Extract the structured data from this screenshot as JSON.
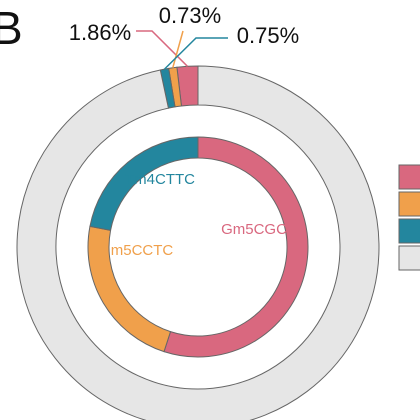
{
  "panel_letter": "B",
  "colors": {
    "gm5cgc": "#D9687F",
    "m5cctc": "#F0A04B",
    "tm4cttc": "#23869E",
    "other": "#E6E6E6",
    "stroke": "#666666"
  },
  "chart_data": [
    {
      "type": "pie",
      "ring": "outer",
      "labels": [
        "",
        "",
        "",
        ""
      ],
      "values": [
        1.86,
        0.73,
        0.75,
        96.66
      ],
      "data_labels": [
        "1.86%",
        "0.73%",
        "0.75%",
        ""
      ],
      "colors": [
        "#D9687F",
        "#F0A04B",
        "#23869E",
        "#E6E6E6"
      ]
    },
    {
      "type": "pie",
      "ring": "inner",
      "labels": [
        "Gm5CGC",
        "m5CCTC",
        "Tm4CTTC"
      ],
      "values": [
        55,
        23,
        22
      ],
      "colors": [
        "#D9687F",
        "#F0A04B",
        "#23869E"
      ]
    }
  ],
  "legend": {
    "placement": "right",
    "swatch_colors": [
      "#D9687F",
      "#F0A04B",
      "#23869E",
      "#E6E6E6"
    ]
  }
}
